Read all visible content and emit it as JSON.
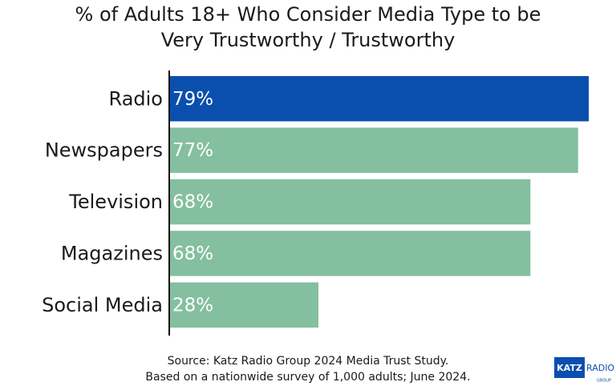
{
  "chart_data": {
    "type": "hbar",
    "title": [
      "% of Adults 18+ Who Consider Media Type to be",
      "Very Trustworthy / Trustworthy"
    ],
    "categories": [
      "Radio",
      "Newspapers",
      "Television",
      "Magazines",
      "Social Media"
    ],
    "values": [
      79,
      77,
      68,
      68,
      28
    ],
    "value_labels": [
      "79%",
      "77%",
      "68%",
      "68%",
      "28%"
    ],
    "colors": [
      "#0a4fae",
      "#84bf9f",
      "#84bf9f",
      "#84bf9f",
      "#84bf9f"
    ],
    "source": [
      "Source: Katz Radio Group 2024 Media Trust Study.",
      "Based on a nationwide survey of 1,000 adults; June 2024."
    ],
    "logo": {
      "name": "KATZ",
      "sub": "RADIO",
      "group": "GROUP"
    }
  }
}
